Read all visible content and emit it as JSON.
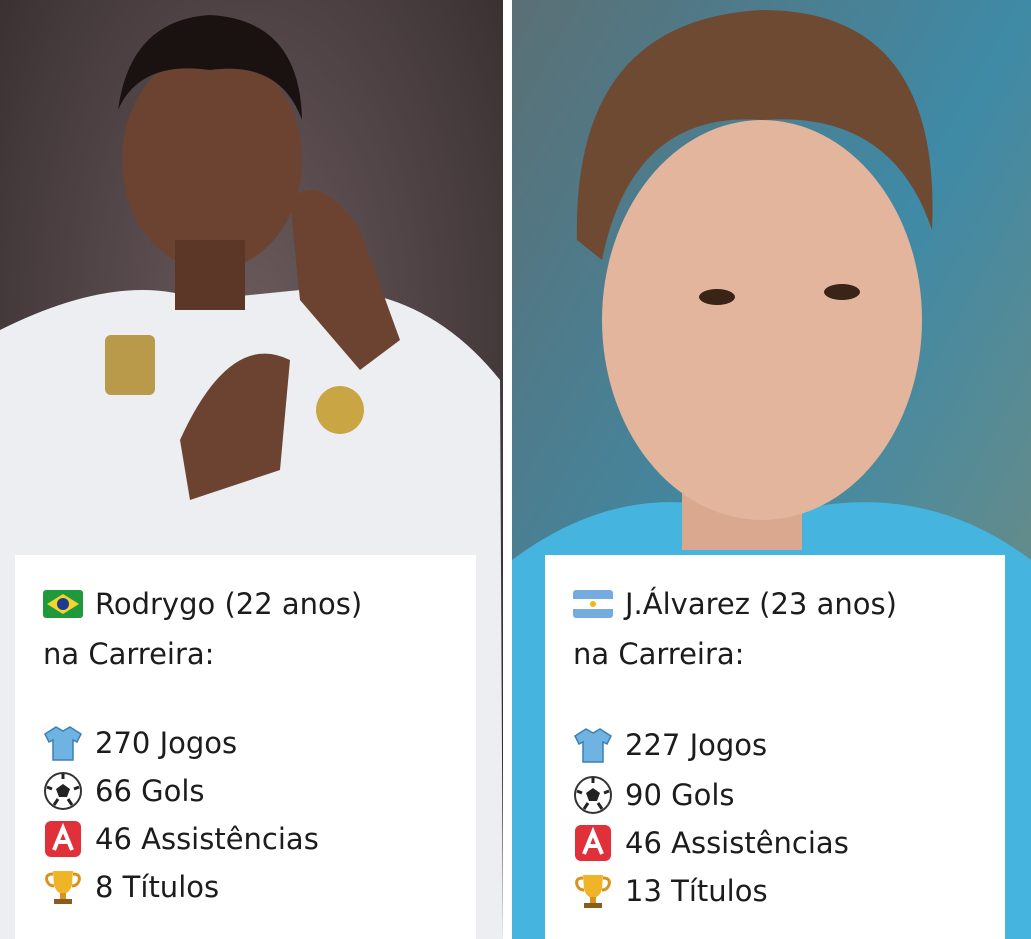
{
  "players": [
    {
      "name": "Rodrygo (22 anos)",
      "subtitle": "na Carreira:",
      "stats": [
        "270 Jogos",
        "66 Gols",
        "46 Assistências",
        "8 Títulos"
      ]
    },
    {
      "name": "J.Álvarez (23 anos)",
      "subtitle": "na Carreira:",
      "stats": [
        "227 Jogos",
        "90 Gols",
        "46 Assistências",
        "13 Títulos"
      ]
    }
  ]
}
